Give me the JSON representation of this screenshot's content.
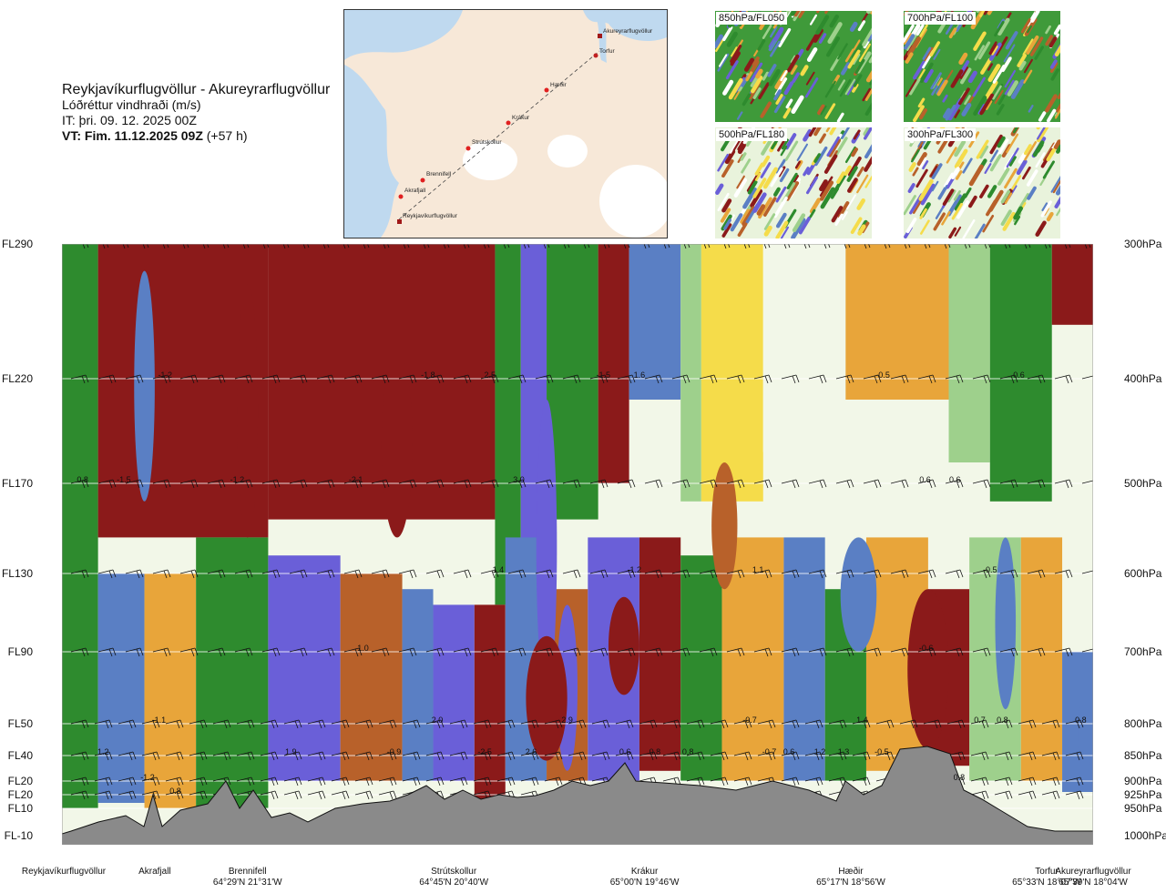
{
  "header": {
    "route": "Reykjavíkurflugvöllur - Akureyrarflugvöllur",
    "variable": "Lóðréttur vindhraði (m/s)",
    "it": "IT: þri. 09. 12. 2025 00Z",
    "vt_bold": "VT: Fim. 11.12.2025 09Z",
    "vt_rest": " (+57 h)"
  },
  "overview_map": {
    "places": [
      "Akureyrarflugvöllur",
      "Torfur",
      "Hæðir",
      "Krákur",
      "Strútskollur",
      "Brennifell",
      "Akrafjall",
      "Reykjavíkurflugvöllur"
    ]
  },
  "level_maps": [
    "850hPa/FL050",
    "700hPa/FL100",
    "500hPa/FL180",
    "300hPa/FL300"
  ],
  "colors": {
    "strong_down": "#8b1a1a",
    "down": "#b8612a",
    "weak_down": "#e8a53a",
    "light_down": "#f5dc4a",
    "near_zero": "#f2f7e8",
    "weak_up": "#9ed08c",
    "up": "#2e8b2e",
    "strong_up": "#5a7fc4",
    "very_strong_up": "#6a5fd8",
    "terrain": "#8a8a8a"
  },
  "chart_data": {
    "type": "heatmap",
    "title": "Lóðréttur vindhraði (m/s)",
    "xlabel": "",
    "ylabel": "",
    "y_levels_fl": [
      "FL290",
      "FL220",
      "FL170",
      "FL130",
      "FL90",
      "FL50",
      "FL40",
      "FL20",
      "FL20",
      "FL10",
      "FL-10"
    ],
    "y_levels_hpa": [
      "300hPa",
      "400hPa",
      "500hPa",
      "600hPa",
      "700hPa",
      "800hPa",
      "850hPa",
      "900hPa",
      "925hPa",
      "950hPa",
      "1000hPa"
    ],
    "hpa_values": [
      300,
      400,
      500,
      600,
      700,
      800,
      850,
      900,
      925,
      950,
      1000
    ],
    "ylim": [
      1000,
      300
    ],
    "stations": [
      {
        "name": "Reykjavíkurflugvöllur",
        "coord": "",
        "x": 0.0
      },
      {
        "name": "Akrafjall",
        "coord": "",
        "x": 0.09
      },
      {
        "name": "Brennifell",
        "coord": "64°29'N 21°31'W",
        "x": 0.18
      },
      {
        "name": "Strútskollur",
        "coord": "64°45'N 20°40'W",
        "x": 0.38
      },
      {
        "name": "Krákur",
        "coord": "65°00'N 19°46'W",
        "x": 0.565
      },
      {
        "name": "Hæðir",
        "coord": "65°17'N 18°56'W",
        "x": 0.765
      },
      {
        "name": "Torfur",
        "coord": "65°33'N 18°07'W",
        "x": 0.955
      },
      {
        "name": "Akureyrarflugvöllur",
        "coord": "65°39'N 18°04'W",
        "x": 1.0
      }
    ],
    "annotations": [
      {
        "text": "-1.2",
        "x": 0.1,
        "p": 400
      },
      {
        "text": "-1.8",
        "x": 0.355,
        "p": 400
      },
      {
        "text": "2.5",
        "x": 0.415,
        "p": 400
      },
      {
        "text": "-1.5",
        "x": 0.525,
        "p": 400
      },
      {
        "text": "1.6",
        "x": 0.56,
        "p": 400
      },
      {
        "text": "-0.5",
        "x": 0.796,
        "p": 400
      },
      {
        "text": "0.6",
        "x": 0.928,
        "p": 400
      },
      {
        "text": "0.8",
        "x": 0.02,
        "p": 500
      },
      {
        "text": "-1.5",
        "x": 0.06,
        "p": 500
      },
      {
        "text": "-1.2",
        "x": 0.17,
        "p": 500
      },
      {
        "text": "-2.1",
        "x": 0.285,
        "p": 500
      },
      {
        "text": "3.0",
        "x": 0.443,
        "p": 500
      },
      {
        "text": "0.6",
        "x": 0.837,
        "p": 500
      },
      {
        "text": "0.6",
        "x": 0.866,
        "p": 500
      },
      {
        "text": "1.4",
        "x": 0.423,
        "p": 600
      },
      {
        "text": "-1.2",
        "x": 0.555,
        "p": 600
      },
      {
        "text": "1.1",
        "x": 0.675,
        "p": 600
      },
      {
        "text": "-0.5",
        "x": 0.9,
        "p": 600
      },
      {
        "text": "1.0",
        "x": 0.292,
        "p": 700
      },
      {
        "text": "-0.6",
        "x": 0.838,
        "p": 700
      },
      {
        "text": "-1.1",
        "x": 0.094,
        "p": 800
      },
      {
        "text": "2.0",
        "x": 0.364,
        "p": 800
      },
      {
        "text": "2.9",
        "x": 0.49,
        "p": 800
      },
      {
        "text": "-0.7",
        "x": 0.667,
        "p": 800
      },
      {
        "text": "1.4",
        "x": 0.776,
        "p": 800
      },
      {
        "text": "0.7",
        "x": 0.89,
        "p": 800
      },
      {
        "text": "0.8",
        "x": 0.912,
        "p": 800
      },
      {
        "text": "0.8",
        "x": 0.988,
        "p": 800
      },
      {
        "text": "1.2",
        "x": 0.04,
        "p": 850
      },
      {
        "text": "1.9",
        "x": 0.222,
        "p": 850
      },
      {
        "text": "-0.9",
        "x": 0.322,
        "p": 850
      },
      {
        "text": "-2.5",
        "x": 0.41,
        "p": 850
      },
      {
        "text": "2.6",
        "x": 0.455,
        "p": 850
      },
      {
        "text": "0.6",
        "x": 0.546,
        "p": 850
      },
      {
        "text": "0.8",
        "x": 0.575,
        "p": 850
      },
      {
        "text": "0.8",
        "x": 0.607,
        "p": 850
      },
      {
        "text": "-0.7",
        "x": 0.686,
        "p": 850
      },
      {
        "text": "0.6",
        "x": 0.705,
        "p": 850
      },
      {
        "text": "1.2",
        "x": 0.735,
        "p": 850
      },
      {
        "text": "1.3",
        "x": 0.758,
        "p": 850
      },
      {
        "text": "-0.5",
        "x": 0.795,
        "p": 850
      },
      {
        "text": "-1.2",
        "x": 0.083,
        "p": 900
      },
      {
        "text": "0.8",
        "x": 0.87,
        "p": 900
      },
      {
        "text": "0.8",
        "x": 0.11,
        "p": 925
      }
    ]
  }
}
